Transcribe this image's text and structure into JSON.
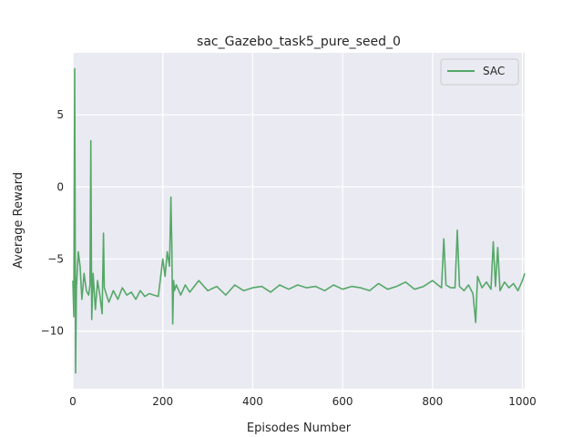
{
  "chart_data": {
    "type": "line",
    "title": "sac_Gazebo_task5_pure_seed_0",
    "xlabel": "Episodes Number",
    "ylabel": "Average Reward",
    "xlim": [
      0,
      1005
    ],
    "ylim": [
      -14,
      9.3
    ],
    "xticks": [
      0,
      200,
      400,
      600,
      800,
      1000
    ],
    "xtick_labels": [
      "0",
      "200",
      "400",
      "600",
      "800",
      "1000"
    ],
    "yticks": [
      -10,
      -5,
      0,
      5
    ],
    "ytick_labels": [
      "−10",
      "−5",
      "0",
      "5"
    ],
    "grid": true,
    "legend": {
      "position": "top-right"
    },
    "colors": {
      "plot_bg": "#eaeaf2",
      "grid": "#ffffff",
      "series": "#55a868",
      "text": "#262626"
    },
    "series": [
      {
        "name": "SAC",
        "x": [
          0,
          2,
          4,
          6,
          8,
          12,
          16,
          20,
          25,
          30,
          35,
          38,
          40,
          42,
          45,
          50,
          55,
          60,
          65,
          68,
          70,
          75,
          80,
          90,
          100,
          110,
          120,
          130,
          140,
          150,
          160,
          170,
          180,
          190,
          200,
          205,
          210,
          215,
          218,
          220,
          222,
          224,
          226,
          230,
          240,
          250,
          260,
          280,
          300,
          320,
          340,
          360,
          380,
          400,
          420,
          440,
          460,
          480,
          500,
          520,
          540,
          560,
          580,
          600,
          620,
          640,
          660,
          680,
          700,
          720,
          740,
          760,
          780,
          800,
          820,
          825,
          830,
          840,
          850,
          855,
          860,
          870,
          880,
          890,
          896,
          900,
          910,
          920,
          930,
          935,
          940,
          945,
          950,
          960,
          970,
          980,
          990,
          1000,
          1005
        ],
        "values": [
          -6.5,
          -9.0,
          8.2,
          -12.9,
          -7.0,
          -4.5,
          -5.5,
          -7.8,
          -6.0,
          -7.2,
          -7.5,
          -6.8,
          3.2,
          -9.2,
          -6.0,
          -8.5,
          -6.5,
          -7.5,
          -8.8,
          -3.2,
          -7.0,
          -7.5,
          -8.0,
          -7.2,
          -7.8,
          -7.0,
          -7.5,
          -7.3,
          -7.8,
          -7.2,
          -7.6,
          -7.4,
          -7.5,
          -7.6,
          -5.0,
          -6.2,
          -4.5,
          -5.5,
          -0.7,
          -4.0,
          -9.5,
          -6.5,
          -7.2,
          -6.8,
          -7.5,
          -6.8,
          -7.3,
          -6.5,
          -7.2,
          -6.9,
          -7.5,
          -6.8,
          -7.2,
          -7.0,
          -6.9,
          -7.3,
          -6.8,
          -7.1,
          -6.8,
          -7.0,
          -6.9,
          -7.2,
          -6.8,
          -7.1,
          -6.9,
          -7.0,
          -7.2,
          -6.7,
          -7.1,
          -6.9,
          -6.6,
          -7.1,
          -6.9,
          -6.5,
          -7.0,
          -3.6,
          -6.8,
          -7.0,
          -7.0,
          -3.0,
          -6.9,
          -7.2,
          -6.8,
          -7.4,
          -9.4,
          -6.2,
          -7.0,
          -6.6,
          -7.1,
          -3.8,
          -6.9,
          -4.2,
          -7.2,
          -6.6,
          -7.0,
          -6.7,
          -7.2,
          -6.5,
          -6.0
        ]
      }
    ]
  }
}
